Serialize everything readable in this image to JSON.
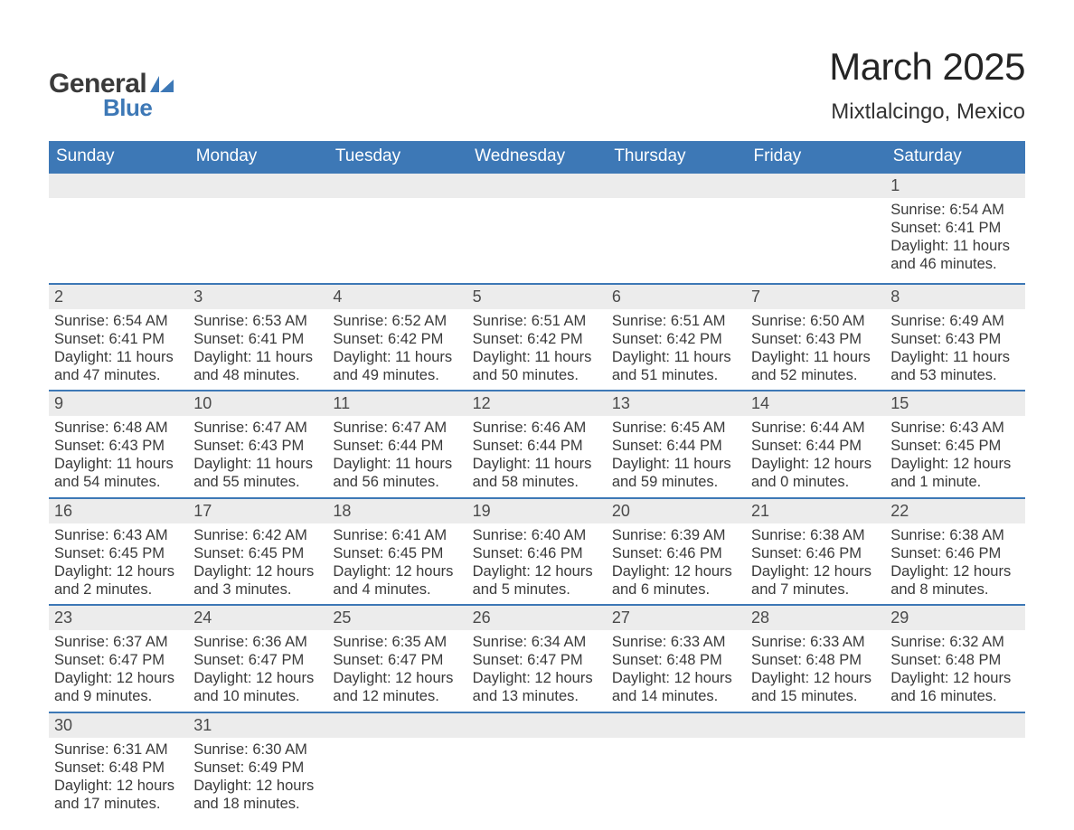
{
  "logo": {
    "line1": "General",
    "line2": "Blue",
    "mark_color": "#3d78b6"
  },
  "title": "March 2025",
  "location": "Mixtlalcingo, Mexico",
  "colors": {
    "header_bg": "#3d78b6",
    "header_text": "#ffffff",
    "daynum_bg": "#ececec",
    "border": "#3d78b6",
    "body_text": "#3a3a3a",
    "page_bg": "#ffffff"
  },
  "typography": {
    "title_fontsize": 42,
    "location_fontsize": 24,
    "header_fontsize": 19,
    "daynum_fontsize": 18,
    "detail_fontsize": 16.5,
    "font_family": "Arial"
  },
  "layout": {
    "columns": 7,
    "weeks": 6
  },
  "weekdays": [
    "Sunday",
    "Monday",
    "Tuesday",
    "Wednesday",
    "Thursday",
    "Friday",
    "Saturday"
  ],
  "weeks": [
    [
      null,
      null,
      null,
      null,
      null,
      null,
      {
        "day": "1",
        "sunrise": "Sunrise: 6:54 AM",
        "sunset": "Sunset: 6:41 PM",
        "daylight1": "Daylight: 11 hours",
        "daylight2": "and 46 minutes."
      }
    ],
    [
      {
        "day": "2",
        "sunrise": "Sunrise: 6:54 AM",
        "sunset": "Sunset: 6:41 PM",
        "daylight1": "Daylight: 11 hours",
        "daylight2": "and 47 minutes."
      },
      {
        "day": "3",
        "sunrise": "Sunrise: 6:53 AM",
        "sunset": "Sunset: 6:41 PM",
        "daylight1": "Daylight: 11 hours",
        "daylight2": "and 48 minutes."
      },
      {
        "day": "4",
        "sunrise": "Sunrise: 6:52 AM",
        "sunset": "Sunset: 6:42 PM",
        "daylight1": "Daylight: 11 hours",
        "daylight2": "and 49 minutes."
      },
      {
        "day": "5",
        "sunrise": "Sunrise: 6:51 AM",
        "sunset": "Sunset: 6:42 PM",
        "daylight1": "Daylight: 11 hours",
        "daylight2": "and 50 minutes."
      },
      {
        "day": "6",
        "sunrise": "Sunrise: 6:51 AM",
        "sunset": "Sunset: 6:42 PM",
        "daylight1": "Daylight: 11 hours",
        "daylight2": "and 51 minutes."
      },
      {
        "day": "7",
        "sunrise": "Sunrise: 6:50 AM",
        "sunset": "Sunset: 6:43 PM",
        "daylight1": "Daylight: 11 hours",
        "daylight2": "and 52 minutes."
      },
      {
        "day": "8",
        "sunrise": "Sunrise: 6:49 AM",
        "sunset": "Sunset: 6:43 PM",
        "daylight1": "Daylight: 11 hours",
        "daylight2": "and 53 minutes."
      }
    ],
    [
      {
        "day": "9",
        "sunrise": "Sunrise: 6:48 AM",
        "sunset": "Sunset: 6:43 PM",
        "daylight1": "Daylight: 11 hours",
        "daylight2": "and 54 minutes."
      },
      {
        "day": "10",
        "sunrise": "Sunrise: 6:47 AM",
        "sunset": "Sunset: 6:43 PM",
        "daylight1": "Daylight: 11 hours",
        "daylight2": "and 55 minutes."
      },
      {
        "day": "11",
        "sunrise": "Sunrise: 6:47 AM",
        "sunset": "Sunset: 6:44 PM",
        "daylight1": "Daylight: 11 hours",
        "daylight2": "and 56 minutes."
      },
      {
        "day": "12",
        "sunrise": "Sunrise: 6:46 AM",
        "sunset": "Sunset: 6:44 PM",
        "daylight1": "Daylight: 11 hours",
        "daylight2": "and 58 minutes."
      },
      {
        "day": "13",
        "sunrise": "Sunrise: 6:45 AM",
        "sunset": "Sunset: 6:44 PM",
        "daylight1": "Daylight: 11 hours",
        "daylight2": "and 59 minutes."
      },
      {
        "day": "14",
        "sunrise": "Sunrise: 6:44 AM",
        "sunset": "Sunset: 6:44 PM",
        "daylight1": "Daylight: 12 hours",
        "daylight2": "and 0 minutes."
      },
      {
        "day": "15",
        "sunrise": "Sunrise: 6:43 AM",
        "sunset": "Sunset: 6:45 PM",
        "daylight1": "Daylight: 12 hours",
        "daylight2": "and 1 minute."
      }
    ],
    [
      {
        "day": "16",
        "sunrise": "Sunrise: 6:43 AM",
        "sunset": "Sunset: 6:45 PM",
        "daylight1": "Daylight: 12 hours",
        "daylight2": "and 2 minutes."
      },
      {
        "day": "17",
        "sunrise": "Sunrise: 6:42 AM",
        "sunset": "Sunset: 6:45 PM",
        "daylight1": "Daylight: 12 hours",
        "daylight2": "and 3 minutes."
      },
      {
        "day": "18",
        "sunrise": "Sunrise: 6:41 AM",
        "sunset": "Sunset: 6:45 PM",
        "daylight1": "Daylight: 12 hours",
        "daylight2": "and 4 minutes."
      },
      {
        "day": "19",
        "sunrise": "Sunrise: 6:40 AM",
        "sunset": "Sunset: 6:46 PM",
        "daylight1": "Daylight: 12 hours",
        "daylight2": "and 5 minutes."
      },
      {
        "day": "20",
        "sunrise": "Sunrise: 6:39 AM",
        "sunset": "Sunset: 6:46 PM",
        "daylight1": "Daylight: 12 hours",
        "daylight2": "and 6 minutes."
      },
      {
        "day": "21",
        "sunrise": "Sunrise: 6:38 AM",
        "sunset": "Sunset: 6:46 PM",
        "daylight1": "Daylight: 12 hours",
        "daylight2": "and 7 minutes."
      },
      {
        "day": "22",
        "sunrise": "Sunrise: 6:38 AM",
        "sunset": "Sunset: 6:46 PM",
        "daylight1": "Daylight: 12 hours",
        "daylight2": "and 8 minutes."
      }
    ],
    [
      {
        "day": "23",
        "sunrise": "Sunrise: 6:37 AM",
        "sunset": "Sunset: 6:47 PM",
        "daylight1": "Daylight: 12 hours",
        "daylight2": "and 9 minutes."
      },
      {
        "day": "24",
        "sunrise": "Sunrise: 6:36 AM",
        "sunset": "Sunset: 6:47 PM",
        "daylight1": "Daylight: 12 hours",
        "daylight2": "and 10 minutes."
      },
      {
        "day": "25",
        "sunrise": "Sunrise: 6:35 AM",
        "sunset": "Sunset: 6:47 PM",
        "daylight1": "Daylight: 12 hours",
        "daylight2": "and 12 minutes."
      },
      {
        "day": "26",
        "sunrise": "Sunrise: 6:34 AM",
        "sunset": "Sunset: 6:47 PM",
        "daylight1": "Daylight: 12 hours",
        "daylight2": "and 13 minutes."
      },
      {
        "day": "27",
        "sunrise": "Sunrise: 6:33 AM",
        "sunset": "Sunset: 6:48 PM",
        "daylight1": "Daylight: 12 hours",
        "daylight2": "and 14 minutes."
      },
      {
        "day": "28",
        "sunrise": "Sunrise: 6:33 AM",
        "sunset": "Sunset: 6:48 PM",
        "daylight1": "Daylight: 12 hours",
        "daylight2": "and 15 minutes."
      },
      {
        "day": "29",
        "sunrise": "Sunrise: 6:32 AM",
        "sunset": "Sunset: 6:48 PM",
        "daylight1": "Daylight: 12 hours",
        "daylight2": "and 16 minutes."
      }
    ],
    [
      {
        "day": "30",
        "sunrise": "Sunrise: 6:31 AM",
        "sunset": "Sunset: 6:48 PM",
        "daylight1": "Daylight: 12 hours",
        "daylight2": "and 17 minutes."
      },
      {
        "day": "31",
        "sunrise": "Sunrise: 6:30 AM",
        "sunset": "Sunset: 6:49 PM",
        "daylight1": "Daylight: 12 hours",
        "daylight2": "and 18 minutes."
      },
      null,
      null,
      null,
      null,
      null
    ]
  ]
}
